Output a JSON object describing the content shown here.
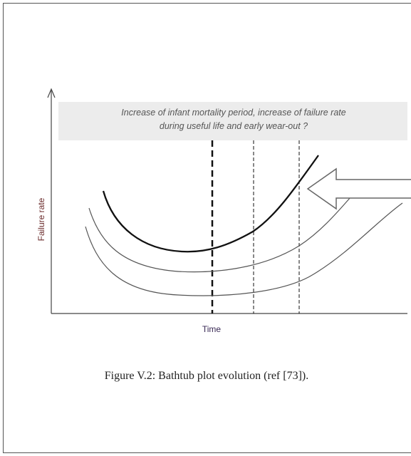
{
  "annotation": {
    "lines": [
      "Increase of infant mortality period, increase of failure rate",
      "during useful life and early wear-out ?"
    ]
  },
  "y_axis_label": "Failure rate",
  "x_axis_label": "Time",
  "caption": "Figure V.2: Bathtub plot evolution (ref [73])."
}
